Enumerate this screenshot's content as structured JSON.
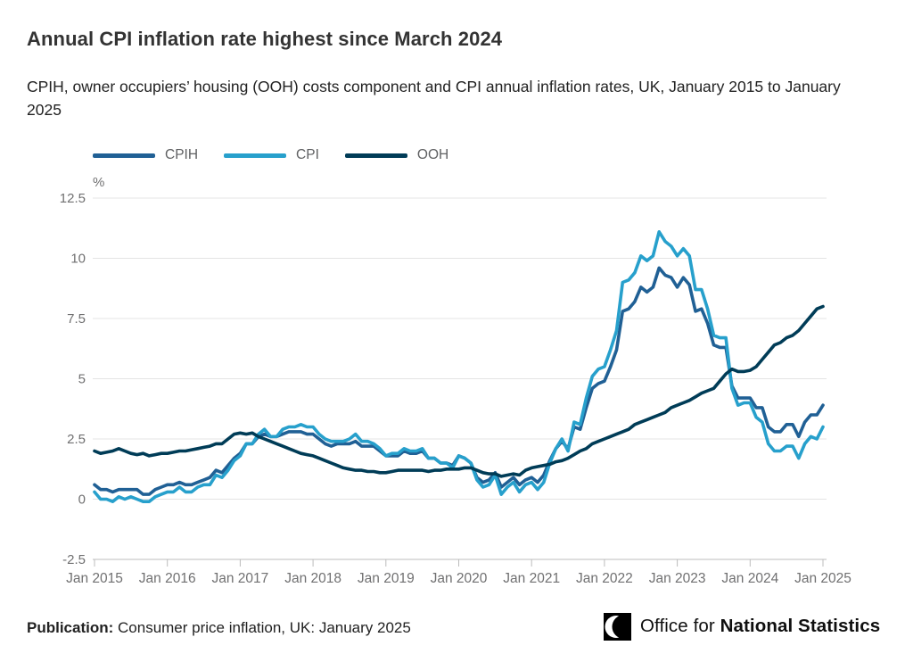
{
  "header": {
    "title": "Annual CPI inflation rate highest since March 2024",
    "subtitle": "CPIH, owner occupiers’ housing (OOH) costs component and CPI annual inflation rates, UK, January 2015 to January 2025"
  },
  "legend": [
    {
      "label": "CPIH",
      "color": "#206095"
    },
    {
      "label": "CPI",
      "color": "#27A0CC"
    },
    {
      "label": "OOH",
      "color": "#003C57"
    }
  ],
  "footer": {
    "publication_label": "Publication:",
    "publication_text": " Consumer price inflation, UK: January 2025",
    "logo_regular": "Office for ",
    "logo_bold": "National Statistics"
  },
  "chart_data": {
    "type": "line",
    "unit": "%",
    "frequency": "monthly",
    "x_start": "Jan 2015",
    "x_end": "Jan 2025",
    "x_tick_labels": [
      "Jan 2015",
      "Jan 2016",
      "Jan 2017",
      "Jan 2018",
      "Jan 2019",
      "Jan 2020",
      "Jan 2021",
      "Jan 2022",
      "Jan 2023",
      "Jan 2024",
      "Jan 2025"
    ],
    "y_ticks": [
      12.5,
      10,
      7.5,
      5,
      2.5,
      0,
      -2.5
    ],
    "ylim": [
      -2.5,
      12.5
    ],
    "grid": "horizontal",
    "legend_position": "top",
    "colors": {
      "grid": "#e4e4e4",
      "axis": "#bcbcbc",
      "tick_text": "#707071"
    },
    "series": [
      {
        "name": "CPIH",
        "color": "#206095",
        "values": [
          0.6,
          0.4,
          0.4,
          0.3,
          0.4,
          0.4,
          0.4,
          0.4,
          0.2,
          0.2,
          0.4,
          0.5,
          0.6,
          0.6,
          0.7,
          0.6,
          0.6,
          0.7,
          0.8,
          0.9,
          1.2,
          1.1,
          1.4,
          1.7,
          1.9,
          2.3,
          2.3,
          2.6,
          2.7,
          2.6,
          2.6,
          2.7,
          2.8,
          2.8,
          2.8,
          2.7,
          2.7,
          2.5,
          2.3,
          2.2,
          2.3,
          2.3,
          2.3,
          2.4,
          2.2,
          2.2,
          2.2,
          2.0,
          1.8,
          1.8,
          1.8,
          2.0,
          1.9,
          1.9,
          2.0,
          1.7,
          1.7,
          1.5,
          1.5,
          1.4,
          1.8,
          1.7,
          1.5,
          0.9,
          0.7,
          0.8,
          1.1,
          0.5,
          0.7,
          0.9,
          0.6,
          0.8,
          0.9,
          0.7,
          1.0,
          1.6,
          2.1,
          2.4,
          2.1,
          3.0,
          2.9,
          3.8,
          4.6,
          4.8,
          4.9,
          5.5,
          6.2,
          7.8,
          7.9,
          8.2,
          8.8,
          8.6,
          8.8,
          9.6,
          9.3,
          9.2,
          8.8,
          9.2,
          8.9,
          7.8,
          7.9,
          7.3,
          6.4,
          6.3,
          6.3,
          4.7,
          4.2,
          4.2,
          4.2,
          3.8,
          3.8,
          3.0,
          2.8,
          2.8,
          3.1,
          3.1,
          2.6,
          3.2,
          3.5,
          3.5,
          3.9
        ]
      },
      {
        "name": "CPI",
        "color": "#27A0CC",
        "values": [
          0.3,
          0.0,
          0.0,
          -0.1,
          0.1,
          0.0,
          0.1,
          0.0,
          -0.1,
          -0.1,
          0.1,
          0.2,
          0.3,
          0.3,
          0.5,
          0.3,
          0.3,
          0.5,
          0.6,
          0.6,
          1.0,
          0.9,
          1.2,
          1.6,
          1.8,
          2.3,
          2.3,
          2.7,
          2.9,
          2.6,
          2.6,
          2.9,
          3.0,
          3.0,
          3.1,
          3.0,
          3.0,
          2.7,
          2.5,
          2.4,
          2.4,
          2.4,
          2.5,
          2.7,
          2.4,
          2.4,
          2.3,
          2.1,
          1.8,
          1.9,
          1.9,
          2.1,
          2.0,
          2.0,
          2.1,
          1.7,
          1.7,
          1.5,
          1.5,
          1.3,
          1.8,
          1.7,
          1.5,
          0.8,
          0.5,
          0.6,
          1.0,
          0.2,
          0.5,
          0.7,
          0.3,
          0.6,
          0.7,
          0.4,
          0.7,
          1.5,
          2.1,
          2.5,
          2.0,
          3.2,
          3.1,
          4.2,
          5.1,
          5.4,
          5.5,
          6.2,
          7.0,
          9.0,
          9.1,
          9.4,
          10.1,
          9.9,
          10.1,
          11.1,
          10.7,
          10.5,
          10.1,
          10.4,
          10.1,
          8.7,
          8.7,
          7.9,
          6.8,
          6.7,
          6.7,
          4.6,
          3.9,
          4.0,
          4.0,
          3.4,
          3.2,
          2.3,
          2.0,
          2.0,
          2.2,
          2.2,
          1.7,
          2.3,
          2.6,
          2.5,
          3.0
        ]
      },
      {
        "name": "OOH",
        "color": "#003C57",
        "values": [
          2.0,
          1.9,
          1.95,
          2.0,
          2.1,
          2.0,
          1.9,
          1.85,
          1.9,
          1.8,
          1.85,
          1.9,
          1.9,
          1.95,
          2.0,
          2.0,
          2.05,
          2.1,
          2.15,
          2.2,
          2.3,
          2.3,
          2.5,
          2.7,
          2.75,
          2.7,
          2.75,
          2.6,
          2.5,
          2.4,
          2.3,
          2.2,
          2.1,
          2.0,
          1.9,
          1.85,
          1.8,
          1.7,
          1.6,
          1.5,
          1.4,
          1.3,
          1.25,
          1.2,
          1.2,
          1.15,
          1.15,
          1.1,
          1.1,
          1.15,
          1.2,
          1.2,
          1.2,
          1.2,
          1.2,
          1.15,
          1.2,
          1.2,
          1.25,
          1.25,
          1.25,
          1.3,
          1.3,
          1.2,
          1.1,
          1.05,
          1.05,
          0.95,
          1.0,
          1.05,
          1.0,
          1.2,
          1.3,
          1.35,
          1.4,
          1.45,
          1.55,
          1.6,
          1.7,
          1.85,
          2.0,
          2.1,
          2.3,
          2.4,
          2.5,
          2.6,
          2.7,
          2.8,
          2.9,
          3.1,
          3.2,
          3.3,
          3.4,
          3.5,
          3.6,
          3.8,
          3.9,
          4.0,
          4.1,
          4.25,
          4.4,
          4.5,
          4.6,
          4.9,
          5.2,
          5.4,
          5.3,
          5.3,
          5.35,
          5.5,
          5.8,
          6.1,
          6.4,
          6.5,
          6.7,
          6.8,
          7.0,
          7.3,
          7.6,
          7.9,
          8.0
        ]
      }
    ]
  }
}
